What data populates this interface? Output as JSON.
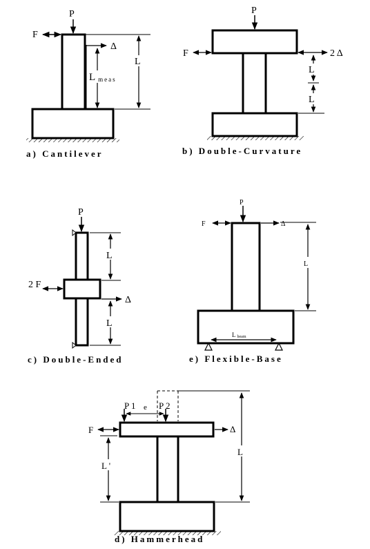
{
  "labels": {
    "P": "P",
    "F": "F",
    "L": "L",
    "delta": "Δ",
    "two_delta": "2 Δ",
    "two_F": "2 F",
    "L_meas_main": "L",
    "L_meas_sub": "meas",
    "L_beam_main": "L",
    "L_beam_sub": "beam",
    "P1": "P 1",
    "P2": "P 2",
    "e": "e",
    "L_prime": "L '"
  },
  "captions": {
    "a": "a) Cantilever",
    "b": "b) Double-Curvature",
    "c": "c) Double-Ended",
    "e": "e) Flexible-Base",
    "d": "d) Hammerhead"
  }
}
